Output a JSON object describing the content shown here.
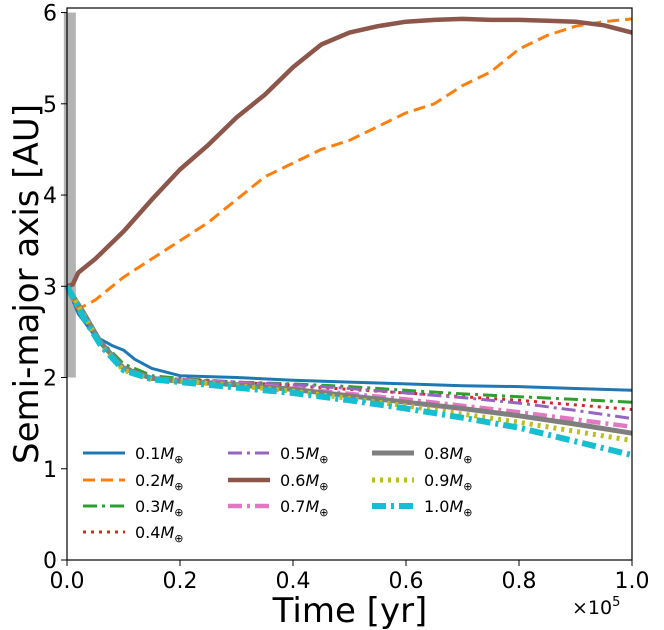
{
  "chart_data": {
    "type": "line",
    "xlabel": "Time [yr]",
    "ylabel": "Semi-major axis [AU]",
    "x_offset_label": "×10",
    "x_offset_exponent": "5",
    "xlim": [
      0,
      1.0
    ],
    "ylim": [
      0,
      6.05
    ],
    "x_ticks": [
      0.0,
      0.2,
      0.4,
      0.6,
      0.8,
      1.0
    ],
    "x_tick_labels": [
      "0.0",
      "0.2",
      "0.4",
      "0.6",
      "0.8",
      "1.0"
    ],
    "y_ticks": [
      0,
      1,
      2,
      3,
      4,
      5,
      6
    ],
    "y_tick_labels": [
      "0",
      "1",
      "2",
      "3",
      "4",
      "5",
      "6"
    ],
    "grid": false,
    "legend_placement": "lower-left",
    "shaded_band": {
      "x": 0.005,
      "y_range": [
        2.0,
        6.0
      ],
      "color": "#b3b3b3"
    },
    "series": [
      {
        "name": "0.1",
        "color": "#1f77b4",
        "style": "solid",
        "x": [
          0.0,
          0.02,
          0.05,
          0.08,
          0.1,
          0.12,
          0.15,
          0.2,
          0.3,
          0.4,
          0.5,
          0.6,
          0.7,
          0.8,
          0.9,
          1.0
        ],
        "y": [
          3.0,
          2.7,
          2.45,
          2.35,
          2.3,
          2.2,
          2.1,
          2.02,
          2.0,
          1.97,
          1.95,
          1.93,
          1.91,
          1.9,
          1.88,
          1.86
        ]
      },
      {
        "name": "0.2",
        "color": "#ff7f0e",
        "style": "dashed",
        "x": [
          0.0,
          0.02,
          0.05,
          0.1,
          0.15,
          0.2,
          0.25,
          0.3,
          0.35,
          0.4,
          0.45,
          0.5,
          0.55,
          0.6,
          0.65,
          0.7,
          0.75,
          0.8,
          0.85,
          0.9,
          0.95,
          1.0
        ],
        "y": [
          2.95,
          2.75,
          2.85,
          3.1,
          3.3,
          3.5,
          3.7,
          3.95,
          4.2,
          4.35,
          4.5,
          4.6,
          4.75,
          4.9,
          5.0,
          5.2,
          5.35,
          5.6,
          5.75,
          5.85,
          5.9,
          5.93
        ]
      },
      {
        "name": "0.3",
        "color": "#2ca02c",
        "style": "dashdot",
        "x": [
          0.0,
          0.03,
          0.06,
          0.1,
          0.15,
          0.2,
          0.3,
          0.4,
          0.5,
          0.6,
          0.7,
          0.8,
          0.9,
          1.0
        ],
        "y": [
          3.0,
          2.72,
          2.4,
          2.15,
          2.02,
          1.99,
          1.95,
          1.93,
          1.9,
          1.86,
          1.82,
          1.79,
          1.76,
          1.73
        ]
      },
      {
        "name": "0.4",
        "color": "#d62728",
        "style": "dotted",
        "x": [
          0.0,
          0.03,
          0.06,
          0.1,
          0.15,
          0.2,
          0.3,
          0.4,
          0.5,
          0.6,
          0.7,
          0.8,
          0.9,
          1.0
        ],
        "y": [
          3.0,
          2.7,
          2.38,
          2.12,
          2.0,
          1.98,
          1.95,
          1.91,
          1.87,
          1.83,
          1.79,
          1.75,
          1.7,
          1.65
        ]
      },
      {
        "name": "0.5",
        "color": "#9467bd",
        "style": "dashdot",
        "x": [
          0.0,
          0.03,
          0.06,
          0.1,
          0.15,
          0.2,
          0.3,
          0.4,
          0.5,
          0.6,
          0.7,
          0.8,
          0.9,
          1.0
        ],
        "y": [
          3.0,
          2.7,
          2.4,
          2.12,
          2.0,
          1.98,
          1.95,
          1.92,
          1.88,
          1.83,
          1.78,
          1.72,
          1.64,
          1.55
        ]
      },
      {
        "name": "0.6",
        "color": "#8c564b",
        "style": "solid",
        "x": [
          0.0,
          0.01,
          0.02,
          0.05,
          0.1,
          0.15,
          0.2,
          0.25,
          0.3,
          0.35,
          0.4,
          0.45,
          0.5,
          0.55,
          0.6,
          0.65,
          0.7,
          0.75,
          0.8,
          0.85,
          0.9,
          0.95,
          1.0
        ],
        "y": [
          3.0,
          3.02,
          3.15,
          3.3,
          3.6,
          3.95,
          4.28,
          4.55,
          4.85,
          5.1,
          5.4,
          5.65,
          5.78,
          5.85,
          5.9,
          5.92,
          5.93,
          5.92,
          5.92,
          5.91,
          5.9,
          5.86,
          5.78
        ]
      },
      {
        "name": "0.7",
        "color": "#e377c2",
        "style": "dashdot",
        "x": [
          0.0,
          0.03,
          0.06,
          0.1,
          0.15,
          0.2,
          0.3,
          0.4,
          0.5,
          0.6,
          0.7,
          0.8,
          0.9,
          1.0
        ],
        "y": [
          3.0,
          2.7,
          2.38,
          2.1,
          1.99,
          1.97,
          1.93,
          1.88,
          1.82,
          1.76,
          1.69,
          1.62,
          1.54,
          1.46
        ]
      },
      {
        "name": "0.8",
        "color": "#7f7f7f",
        "style": "solid",
        "x": [
          0.0,
          0.03,
          0.06,
          0.1,
          0.15,
          0.2,
          0.3,
          0.4,
          0.5,
          0.6,
          0.7,
          0.8,
          0.9,
          1.0
        ],
        "y": [
          3.0,
          2.7,
          2.38,
          2.1,
          1.99,
          1.96,
          1.92,
          1.87,
          1.8,
          1.73,
          1.66,
          1.58,
          1.49,
          1.39
        ]
      },
      {
        "name": "0.9",
        "color": "#bcbd22",
        "style": "dotted",
        "x": [
          0.0,
          0.03,
          0.06,
          0.1,
          0.15,
          0.2,
          0.3,
          0.4,
          0.5,
          0.6,
          0.7,
          0.8,
          0.9,
          1.0
        ],
        "y": [
          3.0,
          2.68,
          2.36,
          2.08,
          1.98,
          1.96,
          1.91,
          1.85,
          1.77,
          1.69,
          1.6,
          1.51,
          1.41,
          1.31
        ]
      },
      {
        "name": "1.0",
        "color": "#17becf",
        "style": "dashdot",
        "x": [
          0.0,
          0.03,
          0.06,
          0.1,
          0.15,
          0.2,
          0.3,
          0.4,
          0.5,
          0.6,
          0.7,
          0.8,
          0.9,
          1.0
        ],
        "y": [
          3.0,
          2.65,
          2.35,
          2.08,
          1.98,
          1.95,
          1.89,
          1.83,
          1.75,
          1.66,
          1.56,
          1.45,
          1.3,
          1.15
        ]
      }
    ],
    "legend_unit": "M",
    "legend_unit_subscript": "⊕"
  }
}
